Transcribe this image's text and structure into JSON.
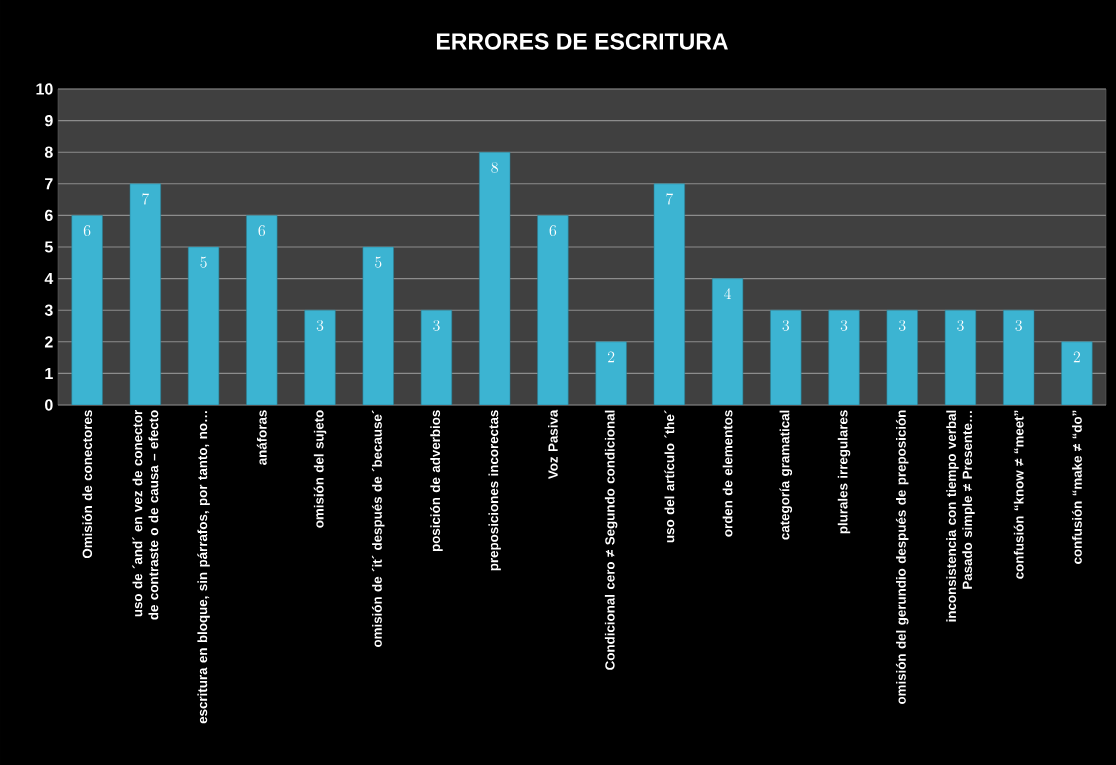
{
  "chart_data": {
    "type": "bar",
    "title": "ERRORES DE ESCRITURA",
    "categories": [
      "Omisión de conectores",
      "uso de ´and´ en vez de conector de contraste o de causa – efecto",
      "escritura en bloque, sin párrafos, por tanto, no…",
      "anáforas",
      "omisión del sujeto",
      "omisión de ´it´ después de ´because´",
      "posición de adverbios",
      "preposiciones incorectas",
      "Voz Pasiva",
      "Condicional cero ≠ Segundo condicional",
      "uso del artículo ´the´",
      "orden de elementos",
      "categoría gramatical",
      "plurales irregulares",
      "omisión del gerundio después de preposición",
      "inconsistencia con tiempo verbal Pasado simple ≠ Presente…",
      "confusión “know ≠ “meet”",
      "confusión “make ≠ “do”"
    ],
    "values": [
      6,
      7,
      5,
      6,
      3,
      5,
      3,
      8,
      6,
      2,
      7,
      4,
      3,
      3,
      3,
      3,
      3,
      2
    ],
    "color": "#3cb4d2",
    "ylim": [
      0,
      10
    ],
    "yticks": [
      0,
      1,
      2,
      3,
      4,
      5,
      6,
      7,
      8,
      9,
      10
    ],
    "grid": "y",
    "data_labels": true
  }
}
